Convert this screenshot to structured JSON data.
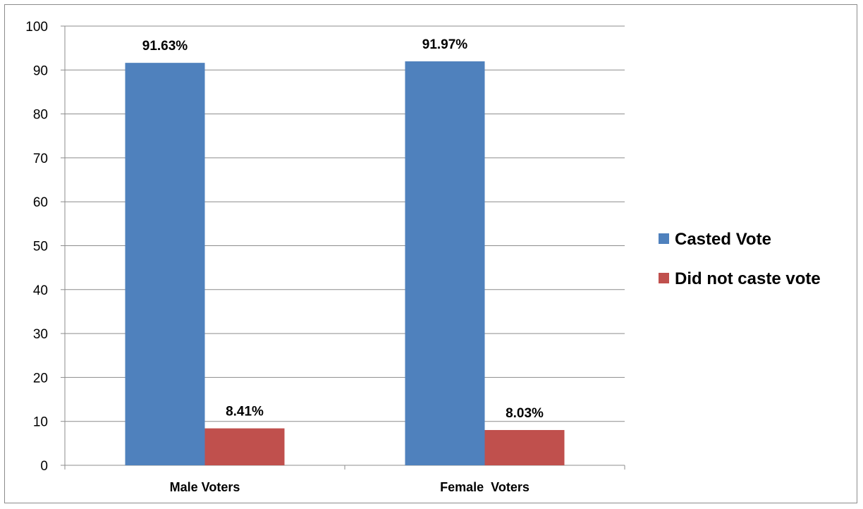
{
  "chart_data": {
    "type": "bar",
    "categories": [
      "Male Voters",
      "Female  Voters"
    ],
    "series": [
      {
        "name": "Casted Vote",
        "values": [
          91.63,
          91.97
        ],
        "labels": [
          "91.63%",
          "91.97%"
        ],
        "color": "#4f81bd"
      },
      {
        "name": "Did not caste vote",
        "values": [
          8.41,
          8.03
        ],
        "labels": [
          "8.41%",
          "8.03%"
        ],
        "color": "#c0504d"
      }
    ],
    "title": "",
    "xlabel": "",
    "ylabel": "",
    "ylim": [
      0,
      100
    ],
    "yticks": [
      0,
      10,
      20,
      30,
      40,
      50,
      60,
      70,
      80,
      90,
      100
    ],
    "grid": true,
    "legend_position": "right"
  }
}
